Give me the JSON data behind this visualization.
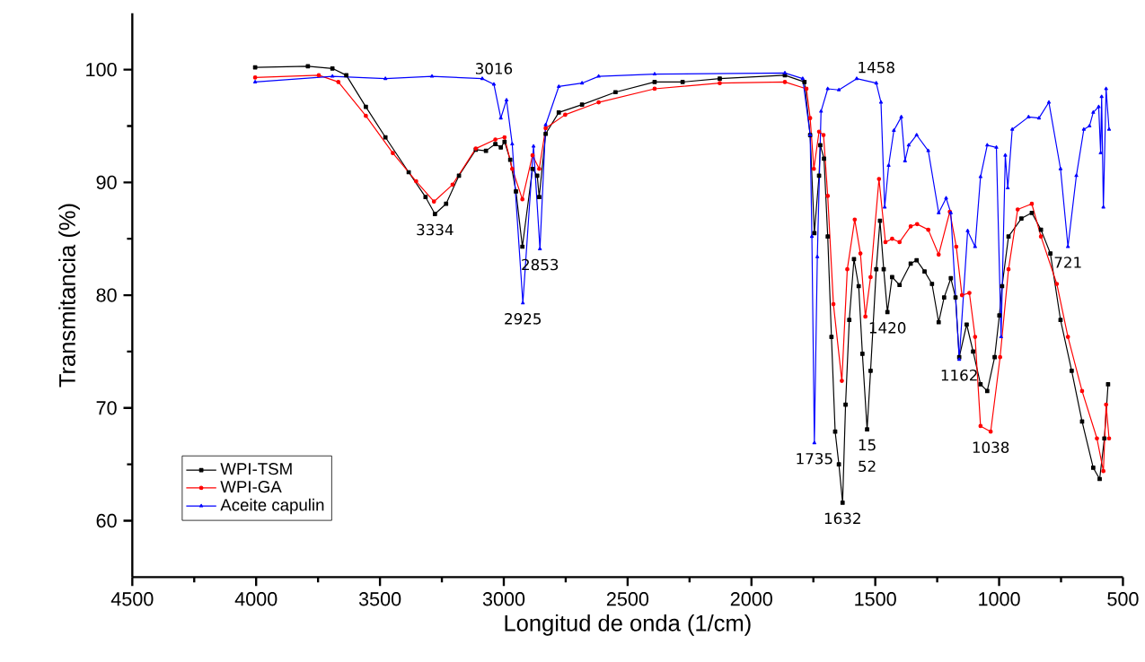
{
  "chart_data": {
    "type": "line",
    "xlabel": "Longitud de onda (1/cm)",
    "ylabel": "Transmitancia (%)",
    "xlim": [
      4500,
      500
    ],
    "xticks": [
      4500,
      4000,
      3500,
      3000,
      2500,
      2000,
      1500,
      1000,
      500
    ],
    "ylim": [
      55,
      105
    ],
    "yticks": [
      60,
      70,
      80,
      90,
      100
    ],
    "grid": false,
    "legend": "bottom left",
    "line_style": "solid",
    "series": [
      {
        "name": "WPI-TSM",
        "color": "#000000",
        "marker": "square",
        "x": [
          4004,
          3791,
          3692,
          3636,
          3557,
          3478,
          3384,
          3316,
          3278,
          3233,
          3181,
          3113,
          3072,
          3034,
          3012,
          2997,
          2974,
          2951,
          2925,
          2884,
          2865,
          2857,
          2831,
          2778,
          2684,
          2549,
          2391,
          2278,
          2128,
          1865,
          1786,
          1763,
          1746,
          1727,
          1722,
          1707,
          1692,
          1677,
          1662,
          1647,
          1632,
          1620,
          1605,
          1586,
          1567,
          1552,
          1533,
          1519,
          1496,
          1481,
          1466,
          1451,
          1432,
          1402,
          1357,
          1333,
          1301,
          1271,
          1244,
          1222,
          1195,
          1176,
          1161,
          1131,
          1105,
          1075,
          1048,
          1018,
          999,
          988,
          962,
          910,
          868,
          831,
          793,
          752,
          707,
          665,
          620,
          594,
          575,
          560
        ],
        "values": [
          100.2,
          100.3,
          100.1,
          99.5,
          96.7,
          94.0,
          90.9,
          88.7,
          87.2,
          88.1,
          90.6,
          92.9,
          92.8,
          93.4,
          93.1,
          93.6,
          92.0,
          89.2,
          84.3,
          91.2,
          90.6,
          88.7,
          94.3,
          96.2,
          96.9,
          98.0,
          98.9,
          98.9,
          99.2,
          99.5,
          98.9,
          94.2,
          85.5,
          90.6,
          93.3,
          92.1,
          85.2,
          76.3,
          67.9,
          65.0,
          61.6,
          70.3,
          77.8,
          83.2,
          80.8,
          74.8,
          68.1,
          73.3,
          82.3,
          86.6,
          82.3,
          78.5,
          81.6,
          80.9,
          82.8,
          83.1,
          82.1,
          81.0,
          77.6,
          79.8,
          81.5,
          79.8,
          74.5,
          77.4,
          75.0,
          72.1,
          71.5,
          74.5,
          78.2,
          80.8,
          85.2,
          86.8,
          87.3,
          85.8,
          83.7,
          77.8,
          73.3,
          68.8,
          64.7,
          63.7,
          67.3,
          72.1
        ]
      },
      {
        "name": "WPI-GA",
        "color": "#ff0000",
        "marker": "circle",
        "x": [
          4004,
          3747,
          3668,
          3557,
          3448,
          3354,
          3282,
          3207,
          3113,
          3034,
          2997,
          2966,
          2925,
          2884,
          2857,
          2831,
          2752,
          2617,
          2391,
          2128,
          1865,
          1778,
          1763,
          1748,
          1727,
          1709,
          1692,
          1669,
          1635,
          1613,
          1583,
          1560,
          1540,
          1519,
          1485,
          1459,
          1432,
          1402,
          1357,
          1331,
          1286,
          1244,
          1199,
          1173,
          1150,
          1120,
          1097,
          1075,
          1034,
          996,
          962,
          925,
          868,
          831,
          767,
          722,
          665,
          605,
          579,
          568,
          556
        ],
        "values": [
          99.3,
          99.5,
          98.9,
          95.9,
          92.6,
          90.1,
          88.3,
          89.8,
          93.0,
          93.8,
          94.0,
          91.2,
          88.5,
          92.4,
          91.2,
          94.8,
          96.0,
          97.1,
          98.3,
          98.8,
          98.9,
          98.3,
          95.7,
          91.2,
          94.5,
          94.2,
          88.8,
          79.2,
          72.4,
          82.3,
          86.7,
          83.7,
          78.1,
          81.6,
          90.3,
          84.7,
          85.0,
          84.7,
          86.1,
          86.3,
          85.8,
          83.6,
          87.4,
          84.3,
          80.0,
          80.2,
          76.3,
          68.4,
          67.9,
          74.5,
          82.3,
          87.6,
          88.1,
          85.2,
          81.0,
          76.3,
          71.5,
          67.3,
          64.4,
          70.3,
          67.3
        ]
      },
      {
        "name": "Aceite capulin",
        "color": "#0000ff",
        "marker": "triangle",
        "x": [
          4004,
          3692,
          3478,
          3290,
          3087,
          3040,
          3012,
          2989,
          2966,
          2923,
          2880,
          2854,
          2831,
          2778,
          2684,
          2617,
          2391,
          1865,
          1793,
          1763,
          1756,
          1746,
          1734,
          1719,
          1692,
          1647,
          1575,
          1496,
          1477,
          1462,
          1446,
          1425,
          1395,
          1380,
          1365,
          1333,
          1286,
          1244,
          1214,
          1195,
          1161,
          1127,
          1097,
          1075,
          1048,
          1011,
          992,
          975,
          965,
          947,
          881,
          839,
          799,
          752,
          722,
          688,
          658,
          635,
          620,
          598,
          590,
          586,
          579,
          568,
          556
        ],
        "values": [
          98.9,
          99.4,
          99.2,
          99.4,
          99.2,
          98.7,
          95.7,
          97.3,
          93.4,
          79.3,
          93.2,
          84.1,
          95.1,
          98.5,
          98.8,
          99.4,
          99.6,
          99.7,
          99.2,
          94.2,
          85.2,
          66.9,
          83.4,
          96.3,
          98.3,
          98.2,
          99.2,
          98.8,
          97.1,
          87.8,
          91.5,
          94.6,
          95.8,
          91.9,
          93.3,
          94.2,
          92.8,
          87.3,
          88.6,
          87.3,
          74.3,
          85.7,
          84.3,
          90.5,
          93.3,
          93.1,
          76.3,
          92.4,
          89.5,
          94.7,
          95.8,
          95.7,
          97.1,
          91.2,
          84.3,
          90.6,
          94.7,
          95.0,
          96.2,
          96.7,
          92.6,
          97.6,
          87.8,
          98.3,
          94.7
        ]
      }
    ],
    "annotations": [
      {
        "text": "3016",
        "x": 3040,
        "y": 98.7
      },
      {
        "text": "3334",
        "x": 3278,
        "y": 87.2
      },
      {
        "text": "2925",
        "x": 2923,
        "y": 79.3
      },
      {
        "text": "2853",
        "x": 2854,
        "y": 84.1
      },
      {
        "text": "1458",
        "x": 1496,
        "y": 98.8
      },
      {
        "text": "1735",
        "x": 1746,
        "y": 66.9
      },
      {
        "text": "15",
        "x": 1533,
        "y": 68.1
      },
      {
        "text": "52",
        "x": 1533,
        "y": 68.1
      },
      {
        "text": "1632",
        "x": 1632,
        "y": 61.6
      },
      {
        "text": "1420",
        "x": 1451,
        "y": 78.5
      },
      {
        "text": "1162",
        "x": 1161,
        "y": 74.3
      },
      {
        "text": "1038",
        "x": 1034,
        "y": 67.9
      },
      {
        "text": "721",
        "x": 722,
        "y": 84.3
      }
    ]
  }
}
